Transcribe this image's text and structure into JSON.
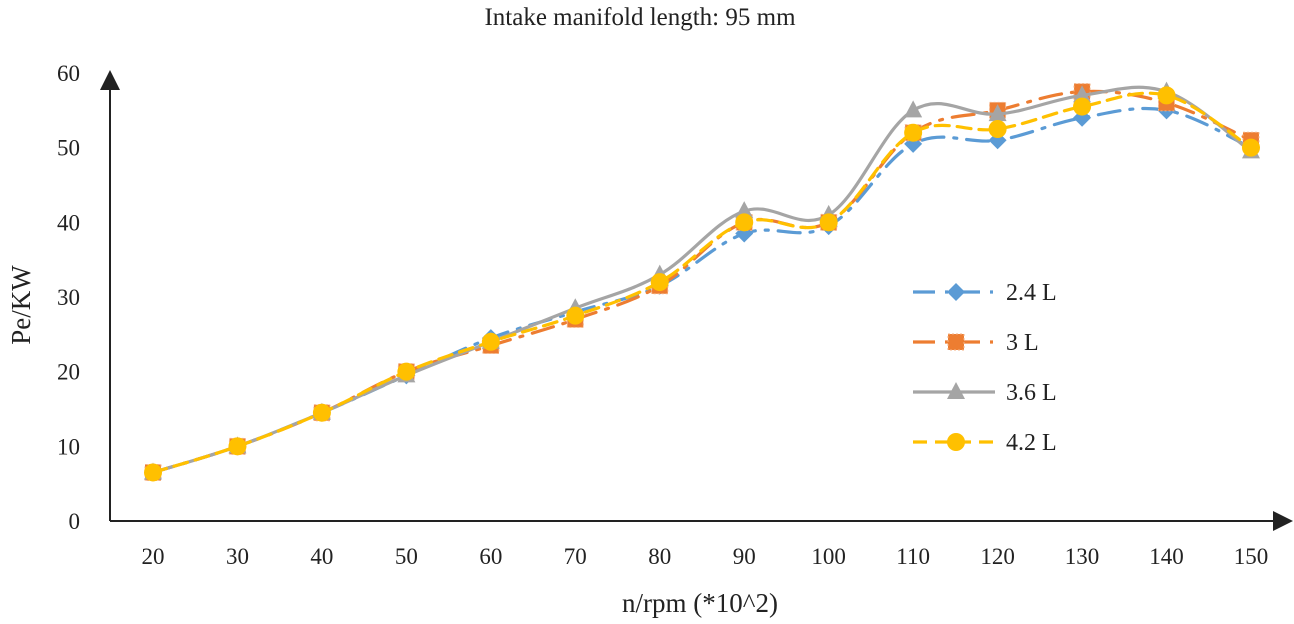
{
  "chart_data": {
    "type": "line",
    "title": "Intake manifold length: 95 mm",
    "xlabel": "n/rpm (*10^2)",
    "ylabel": "Pe/KW",
    "ylim": [
      0,
      60
    ],
    "yticks": [
      0,
      10,
      20,
      30,
      40,
      50,
      60
    ],
    "categories": [
      "20",
      "30",
      "40",
      "50",
      "60",
      "70",
      "80",
      "90",
      "100",
      "110",
      "120",
      "130",
      "140",
      "150"
    ],
    "grid": false,
    "legend_position": "right",
    "series": [
      {
        "name": "2.4 L",
        "color": "#5B9BD5",
        "marker": "diamond",
        "dash": "long-dash-dot",
        "values": [
          6.5,
          10,
          14.5,
          19.5,
          24.5,
          28,
          31.5,
          38.5,
          39.5,
          50.5,
          51,
          54,
          55,
          50
        ]
      },
      {
        "name": "3 L",
        "color": "#ED7D31",
        "marker": "square",
        "dash": "long-dash-dot",
        "values": [
          6.5,
          10,
          14.5,
          20,
          23.5,
          27,
          31.5,
          40,
          40,
          52,
          55,
          57.5,
          56,
          51
        ]
      },
      {
        "name": "3.6 L",
        "color": "#A5A5A5",
        "marker": "triangle",
        "dash": "solid",
        "values": [
          6.5,
          10,
          14.5,
          19.5,
          24,
          28.5,
          33,
          41.5,
          41,
          55,
          54.5,
          57,
          57.5,
          49.5
        ]
      },
      {
        "name": "4.2 L",
        "color": "#FFC000",
        "marker": "circle",
        "dash": "dash",
        "values": [
          6.5,
          10,
          14.5,
          20,
          24,
          27.5,
          32,
          40,
          40,
          52,
          52.5,
          55.5,
          57,
          50
        ]
      }
    ]
  }
}
